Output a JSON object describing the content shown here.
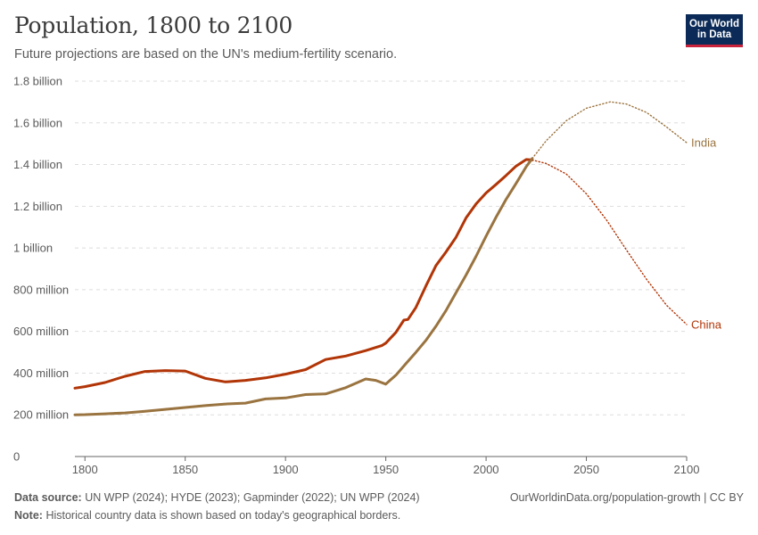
{
  "header": {
    "title": "Population, 1800 to 2100",
    "subtitle": "Future projections are based on the UN's medium-fertility scenario."
  },
  "logo": {
    "line1": "Our World",
    "line2": "in Data"
  },
  "footer": {
    "source_label": "Data source:",
    "source_text": "UN WPP (2024); HYDE (2023); Gapminder (2022); UN WPP (2024)",
    "note_label": "Note:",
    "note_text": "Historical country data is shown based on today's geographical borders.",
    "url_text": "OurWorldinData.org/population-growth | CC BY"
  },
  "colors": {
    "china": "#b13507",
    "india": "#9a7440",
    "grid": "#dddddd",
    "axis": "#666666"
  },
  "chart_data": {
    "type": "line",
    "title": "Population, 1800 to 2100",
    "subtitle": "Future projections are based on the UN's medium-fertility scenario.",
    "xlim": [
      1795,
      2100
    ],
    "ylim": [
      0,
      1800000000
    ],
    "x_ticks": [
      1800,
      1850,
      1900,
      1950,
      2000,
      2050,
      2100
    ],
    "y_ticks": [
      0,
      200000000,
      400000000,
      600000000,
      800000000,
      1000000000,
      1200000000,
      1400000000,
      1600000000,
      1800000000
    ],
    "y_tick_labels": [
      "0",
      "200 million",
      "400 million",
      "600 million",
      "800 million",
      "1 billion",
      "1.2 billion",
      "1.4 billion",
      "1.6 billion",
      "1.8 billion"
    ],
    "grid": "horizontal dashed",
    "projection_start": 2023,
    "series": [
      {
        "name": "China",
        "color": "#b13507",
        "historical": [
          [
            1795,
            328000000
          ],
          [
            1800,
            335000000
          ],
          [
            1810,
            355000000
          ],
          [
            1820,
            385000000
          ],
          [
            1830,
            408000000
          ],
          [
            1840,
            412000000
          ],
          [
            1850,
            410000000
          ],
          [
            1860,
            375000000
          ],
          [
            1870,
            358000000
          ],
          [
            1880,
            365000000
          ],
          [
            1890,
            377000000
          ],
          [
            1900,
            395000000
          ],
          [
            1910,
            417000000
          ],
          [
            1920,
            465000000
          ],
          [
            1930,
            482000000
          ],
          [
            1940,
            508000000
          ],
          [
            1948,
            532000000
          ],
          [
            1950,
            544000000
          ],
          [
            1955,
            595000000
          ],
          [
            1959,
            654000000
          ],
          [
            1961,
            657000000
          ],
          [
            1965,
            715000000
          ],
          [
            1970,
            818000000
          ],
          [
            1975,
            916000000
          ],
          [
            1980,
            981000000
          ],
          [
            1985,
            1051000000
          ],
          [
            1990,
            1144000000
          ],
          [
            1995,
            1211000000
          ],
          [
            2000,
            1264000000
          ],
          [
            2005,
            1305000000
          ],
          [
            2010,
            1348000000
          ],
          [
            2015,
            1393000000
          ],
          [
            2020,
            1424000000
          ],
          [
            2023,
            1422000000
          ]
        ],
        "projection": [
          [
            2023,
            1422000000
          ],
          [
            2030,
            1405000000
          ],
          [
            2040,
            1355000000
          ],
          [
            2050,
            1260000000
          ],
          [
            2060,
            1135000000
          ],
          [
            2070,
            990000000
          ],
          [
            2080,
            850000000
          ],
          [
            2090,
            725000000
          ],
          [
            2100,
            633000000
          ]
        ]
      },
      {
        "name": "India",
        "color": "#9a7440",
        "historical": [
          [
            1795,
            200000000
          ],
          [
            1800,
            201000000
          ],
          [
            1810,
            205000000
          ],
          [
            1820,
            209000000
          ],
          [
            1830,
            217000000
          ],
          [
            1840,
            226000000
          ],
          [
            1850,
            235000000
          ],
          [
            1860,
            244000000
          ],
          [
            1870,
            252000000
          ],
          [
            1880,
            256000000
          ],
          [
            1890,
            276000000
          ],
          [
            1900,
            281000000
          ],
          [
            1910,
            297000000
          ],
          [
            1920,
            300000000
          ],
          [
            1930,
            330000000
          ],
          [
            1940,
            372000000
          ],
          [
            1945,
            365000000
          ],
          [
            1950,
            347000000
          ],
          [
            1955,
            390000000
          ],
          [
            1960,
            445000000
          ],
          [
            1965,
            500000000
          ],
          [
            1970,
            557000000
          ],
          [
            1975,
            625000000
          ],
          [
            1980,
            700000000
          ],
          [
            1985,
            785000000
          ],
          [
            1990,
            870000000
          ],
          [
            1995,
            960000000
          ],
          [
            2000,
            1057000000
          ],
          [
            2005,
            1148000000
          ],
          [
            2010,
            1234000000
          ],
          [
            2015,
            1310000000
          ],
          [
            2020,
            1390000000
          ],
          [
            2023,
            1429000000
          ]
        ],
        "projection": [
          [
            2023,
            1429000000
          ],
          [
            2030,
            1515000000
          ],
          [
            2040,
            1610000000
          ],
          [
            2050,
            1670000000
          ],
          [
            2062,
            1701000000
          ],
          [
            2070,
            1690000000
          ],
          [
            2080,
            1650000000
          ],
          [
            2090,
            1580000000
          ],
          [
            2100,
            1505000000
          ]
        ]
      }
    ]
  }
}
